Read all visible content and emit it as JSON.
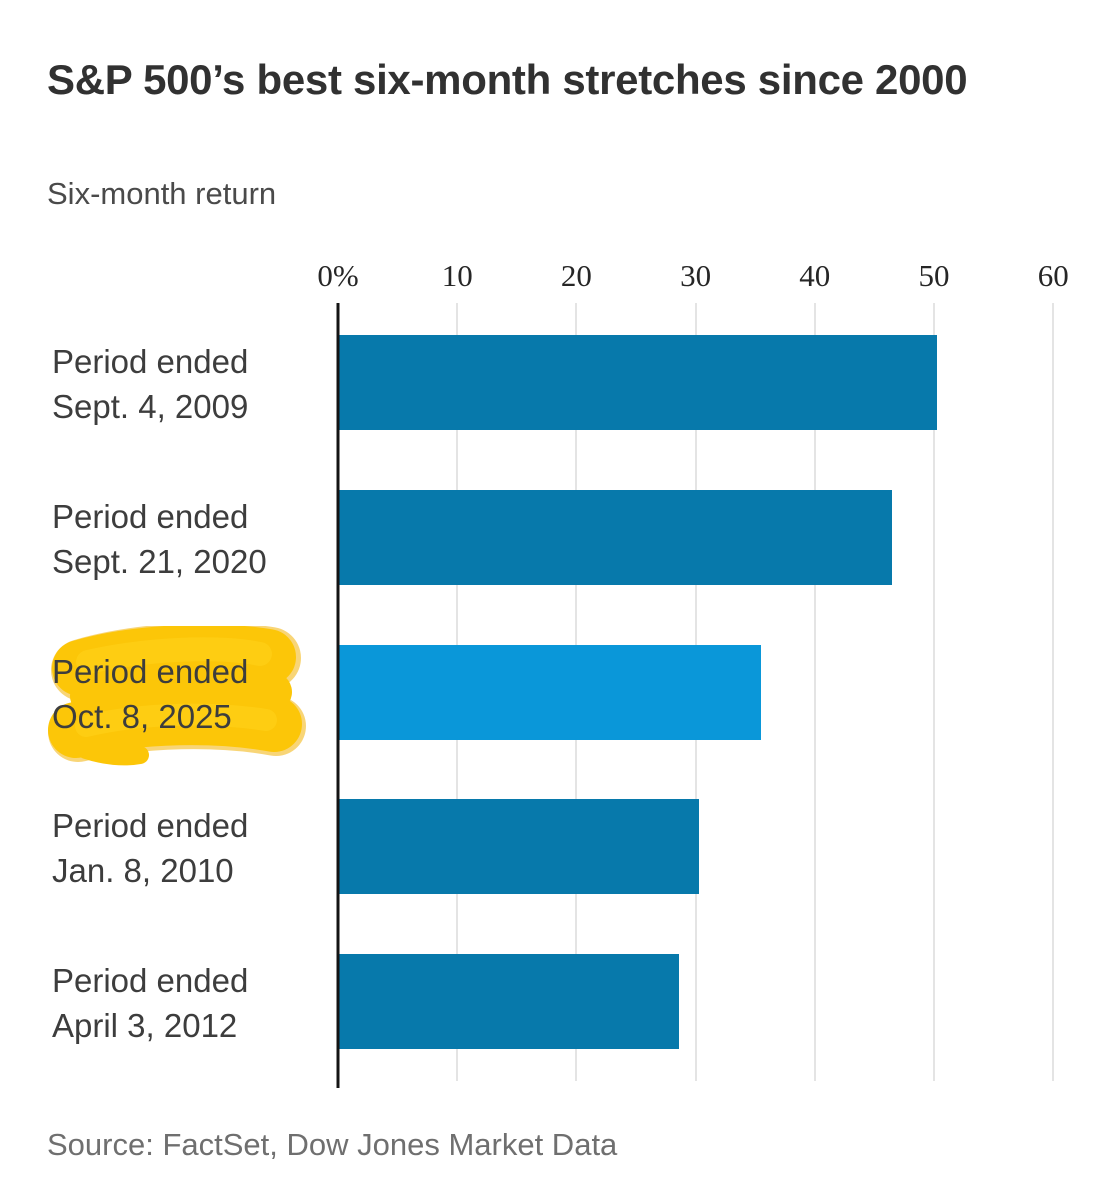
{
  "title": "S&P 500’s best six-month stretches since 2000",
  "subtitle": "Six-month return",
  "source": "Source: FactSet, Dow Jones Market Data",
  "chart_data": {
    "type": "bar",
    "orientation": "horizontal",
    "title": "S&P 500’s best six-month stretches since 2000",
    "subtitle": "Six-month return",
    "xlabel": "Six-month return (%)",
    "ylabel": "",
    "xlim": [
      0,
      64
    ],
    "grid": "vertical",
    "legend": "none",
    "xticks": [
      {
        "label": "0%",
        "value": 0
      },
      {
        "label": "10",
        "value": 10
      },
      {
        "label": "20",
        "value": 20
      },
      {
        "label": "30",
        "value": 30
      },
      {
        "label": "40",
        "value": 40
      },
      {
        "label": "50",
        "value": 50
      },
      {
        "label": "60",
        "value": 60
      }
    ],
    "bars": [
      {
        "label": "Period ended Sept. 4, 2009",
        "label_lines": [
          "Period ended",
          "Sept. 4, 2009"
        ],
        "value": 50.2,
        "highlighted": false
      },
      {
        "label": "Period ended Sept. 21, 2020",
        "label_lines": [
          "Period ended",
          "Sept. 21, 2020"
        ],
        "value": 46.4,
        "highlighted": false
      },
      {
        "label": "Period ended Oct. 8, 2025",
        "label_lines": [
          "Period ended",
          "Oct. 8, 2025"
        ],
        "value": 35.4,
        "highlighted": true
      },
      {
        "label": "Period ended Jan. 8, 2010",
        "label_lines": [
          "Period ended",
          "Jan. 8, 2010"
        ],
        "value": 30.2,
        "highlighted": false
      },
      {
        "label": "Period ended April 3, 2012",
        "label_lines": [
          "Period ended",
          "April 3, 2012"
        ],
        "value": 28.5,
        "highlighted": false
      }
    ],
    "colors": {
      "bar": "#0779ab",
      "bar_highlight": "#0a97d9",
      "axis": "#141414",
      "gridline": "#e4e4e4",
      "label_highlight_marker": "#fcc608",
      "title_text": "#313131",
      "label_text": "#3d3d3d"
    }
  }
}
